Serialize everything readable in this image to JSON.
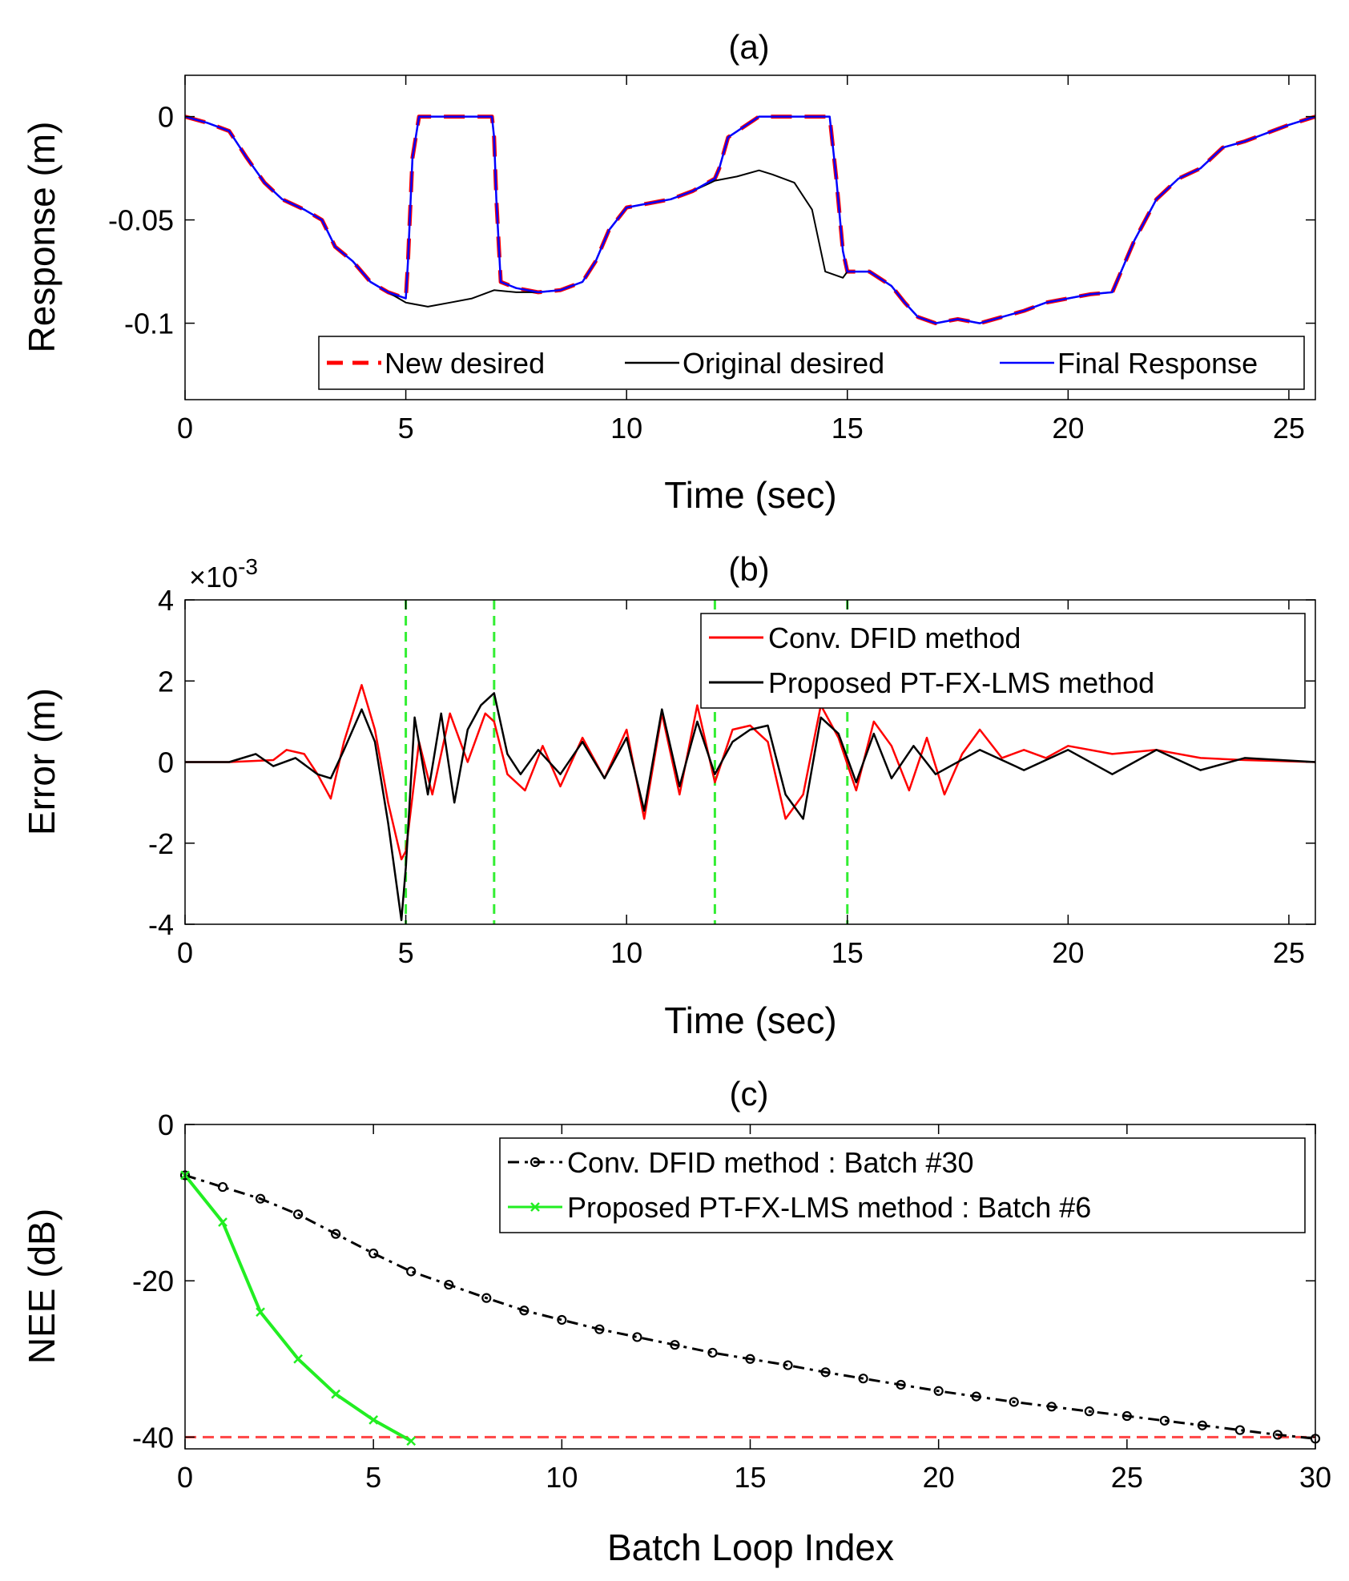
{
  "chart_data": [
    {
      "id": "a",
      "type": "line",
      "title": "(a)",
      "xlabel": "Time (sec)",
      "ylabel": "Response (m)",
      "xlim": [
        0,
        25.6
      ],
      "ylim": [
        -0.137,
        0.02
      ],
      "xticks": [
        0,
        5,
        10,
        15,
        20,
        25
      ],
      "yticks": [
        0,
        -0.05,
        -0.1
      ],
      "ytick_labels": [
        "0",
        "-0.05",
        "-0.1"
      ],
      "grid": false,
      "legend": {
        "placement": "bottom-right",
        "orientation": "horizontal"
      },
      "series": [
        {
          "name": "New desired",
          "color": "#ff0000",
          "style": "dashed",
          "x": [
            0,
            0.5,
            1,
            1.4,
            1.8,
            2.2,
            2.7,
            3.1,
            3.4,
            3.8,
            4.2,
            4.6,
            5.0,
            5.05,
            5.15,
            5.3,
            6.0,
            6.6,
            6.95,
            7.0,
            7.05,
            7.15,
            7.5,
            8.0,
            8.5,
            9.0,
            9.3,
            9.6,
            10.0,
            10.5,
            11.0,
            11.5,
            12.0,
            12.1,
            12.3,
            13.0,
            13.5,
            14.0,
            14.6,
            14.75,
            14.9,
            15.0,
            15.5,
            16.0,
            16.3,
            16.6,
            17.0,
            17.5,
            18.0,
            18.5,
            19.0,
            19.5,
            20.0,
            20.5,
            21.0,
            21.5,
            22.0,
            22.5,
            23.0,
            23.5,
            24.0,
            24.5,
            25.0,
            25.6
          ],
          "y": [
            0,
            -0.003,
            -0.007,
            -0.02,
            -0.032,
            -0.04,
            -0.045,
            -0.05,
            -0.063,
            -0.07,
            -0.08,
            -0.085,
            -0.088,
            -0.07,
            -0.02,
            0,
            0,
            0,
            0,
            -0.01,
            -0.04,
            -0.08,
            -0.083,
            -0.085,
            -0.084,
            -0.08,
            -0.07,
            -0.055,
            -0.044,
            -0.042,
            -0.04,
            -0.036,
            -0.03,
            -0.025,
            -0.01,
            0,
            0,
            0,
            0,
            -0.03,
            -0.065,
            -0.075,
            -0.075,
            -0.082,
            -0.09,
            -0.097,
            -0.1,
            -0.098,
            -0.1,
            -0.097,
            -0.094,
            -0.09,
            -0.088,
            -0.086,
            -0.085,
            -0.06,
            -0.04,
            -0.03,
            -0.025,
            -0.015,
            -0.012,
            -0.008,
            -0.004,
            0
          ]
        },
        {
          "name": "Original desired",
          "color": "#000000",
          "style": "solid",
          "x": [
            0,
            0.5,
            1,
            1.4,
            1.8,
            2.2,
            2.7,
            3.1,
            3.4,
            3.8,
            4.2,
            4.6,
            5.0,
            5.5,
            6.0,
            6.5,
            7.0,
            7.5,
            8.0,
            8.5,
            9.0,
            9.3,
            9.6,
            10.0,
            10.5,
            11.0,
            11.5,
            12.0,
            12.5,
            13.0,
            13.3,
            13.8,
            14.2,
            14.5,
            14.9,
            15.0,
            15.5,
            16.0,
            16.3,
            16.6,
            17.0,
            17.5,
            18.0,
            18.5,
            19.0,
            19.5,
            20.0,
            20.5,
            21.0,
            21.5,
            22.0,
            22.5,
            23.0,
            23.5,
            24.0,
            24.5,
            25.0,
            25.6
          ],
          "y": [
            0,
            -0.003,
            -0.007,
            -0.02,
            -0.032,
            -0.04,
            -0.045,
            -0.05,
            -0.063,
            -0.07,
            -0.08,
            -0.085,
            -0.09,
            -0.092,
            -0.09,
            -0.088,
            -0.084,
            -0.085,
            -0.085,
            -0.084,
            -0.08,
            -0.07,
            -0.055,
            -0.044,
            -0.042,
            -0.04,
            -0.036,
            -0.031,
            -0.029,
            -0.026,
            -0.028,
            -0.032,
            -0.045,
            -0.075,
            -0.078,
            -0.075,
            -0.075,
            -0.082,
            -0.09,
            -0.097,
            -0.1,
            -0.098,
            -0.1,
            -0.097,
            -0.094,
            -0.09,
            -0.088,
            -0.086,
            -0.085,
            -0.06,
            -0.04,
            -0.03,
            -0.025,
            -0.015,
            -0.012,
            -0.008,
            -0.004,
            0
          ]
        },
        {
          "name": "Final Response",
          "color": "#0000ff",
          "style": "solid",
          "x": [
            0,
            0.5,
            1,
            1.4,
            1.8,
            2.2,
            2.7,
            3.1,
            3.4,
            3.8,
            4.2,
            4.6,
            5.0,
            5.05,
            5.15,
            5.3,
            6.0,
            6.6,
            6.95,
            7.0,
            7.05,
            7.15,
            7.5,
            8.0,
            8.5,
            9.0,
            9.3,
            9.6,
            10.0,
            10.5,
            11.0,
            11.5,
            12.0,
            12.1,
            12.3,
            13.0,
            13.5,
            14.0,
            14.6,
            14.75,
            14.9,
            15.0,
            15.5,
            16.0,
            16.3,
            16.6,
            17.0,
            17.5,
            18.0,
            18.5,
            19.0,
            19.5,
            20.0,
            20.5,
            21.0,
            21.5,
            22.0,
            22.5,
            23.0,
            23.5,
            24.0,
            24.5,
            25.0,
            25.6
          ],
          "y": [
            0,
            -0.003,
            -0.007,
            -0.02,
            -0.032,
            -0.04,
            -0.045,
            -0.05,
            -0.063,
            -0.07,
            -0.08,
            -0.085,
            -0.088,
            -0.07,
            -0.02,
            0,
            0,
            0,
            0,
            -0.01,
            -0.04,
            -0.08,
            -0.083,
            -0.085,
            -0.084,
            -0.08,
            -0.07,
            -0.055,
            -0.044,
            -0.042,
            -0.04,
            -0.036,
            -0.03,
            -0.025,
            -0.01,
            0,
            0,
            0,
            0,
            -0.03,
            -0.065,
            -0.075,
            -0.075,
            -0.082,
            -0.09,
            -0.097,
            -0.1,
            -0.098,
            -0.1,
            -0.097,
            -0.094,
            -0.09,
            -0.088,
            -0.086,
            -0.085,
            -0.06,
            -0.04,
            -0.03,
            -0.025,
            -0.015,
            -0.012,
            -0.008,
            -0.004,
            0
          ]
        }
      ]
    },
    {
      "id": "b",
      "type": "line",
      "title": "(b)",
      "xlabel": "Time (sec)",
      "ylabel": "Error (m)",
      "y_multiplier": "×10",
      "y_exponent": "-3",
      "xlim": [
        0,
        25.6
      ],
      "ylim": [
        -4,
        4
      ],
      "xticks": [
        0,
        5,
        10,
        15,
        20,
        25
      ],
      "yticks": [
        4,
        2,
        0,
        -2,
        -4
      ],
      "grid": false,
      "vlines": {
        "x": [
          5,
          7,
          12,
          15
        ],
        "color": "#33ee33",
        "style": "dashed"
      },
      "legend": {
        "placement": "top-right",
        "orientation": "vertical"
      },
      "series": [
        {
          "name": "Conv. DFID method",
          "color": "#ff0000",
          "style": "solid",
          "x": [
            0,
            1,
            2,
            2.3,
            2.7,
            3.0,
            3.3,
            3.6,
            4.0,
            4.3,
            4.6,
            4.9,
            5.0,
            5.3,
            5.6,
            6.0,
            6.4,
            6.8,
            7.0,
            7.3,
            7.7,
            8.1,
            8.5,
            9.0,
            9.5,
            10.0,
            10.4,
            10.8,
            11.2,
            11.6,
            12.0,
            12.4,
            12.8,
            13.2,
            13.6,
            14.0,
            14.4,
            14.8,
            15.2,
            15.6,
            16.0,
            16.4,
            16.8,
            17.2,
            17.6,
            18.0,
            18.5,
            19.0,
            19.5,
            20.0,
            21.0,
            22.0,
            23.0,
            24.0,
            25.6
          ],
          "y": [
            0,
            0,
            0.05,
            0.3,
            0.2,
            -0.3,
            -0.9,
            0.5,
            1.9,
            0.8,
            -1.0,
            -2.4,
            -2.2,
            0.5,
            -0.8,
            1.2,
            0,
            1.2,
            1.0,
            -0.3,
            -0.7,
            0.4,
            -0.6,
            0.6,
            -0.4,
            0.8,
            -1.4,
            1.2,
            -0.8,
            1.4,
            -0.5,
            0.8,
            0.9,
            0.5,
            -1.4,
            -0.8,
            1.4,
            0.6,
            -0.7,
            1.0,
            0.4,
            -0.7,
            0.6,
            -0.8,
            0.2,
            0.8,
            0.1,
            0.3,
            0.1,
            0.4,
            0.2,
            0.3,
            0.1,
            0.05,
            0
          ]
        },
        {
          "name": "Proposed PT-FX-LMS method",
          "color": "#000000",
          "style": "solid",
          "x": [
            0,
            1,
            1.6,
            2.0,
            2.5,
            3.0,
            3.3,
            3.6,
            4.0,
            4.3,
            4.6,
            4.9,
            5.0,
            5.2,
            5.5,
            5.8,
            6.1,
            6.4,
            6.7,
            7.0,
            7.3,
            7.6,
            8.0,
            8.5,
            9.0,
            9.5,
            10.0,
            10.4,
            10.8,
            11.2,
            11.6,
            12.0,
            12.4,
            12.8,
            13.2,
            13.6,
            14.0,
            14.4,
            14.8,
            15.2,
            15.6,
            16.0,
            16.5,
            17.0,
            18.0,
            19.0,
            20.0,
            21.0,
            22.0,
            23.0,
            24.0,
            25.6
          ],
          "y": [
            0,
            0,
            0.2,
            -0.1,
            0.1,
            -0.3,
            -0.4,
            0.3,
            1.3,
            0.5,
            -1.5,
            -3.9,
            -2.6,
            1.1,
            -0.8,
            1.2,
            -1.0,
            0.8,
            1.4,
            1.7,
            0.2,
            -0.3,
            0.3,
            -0.3,
            0.5,
            -0.4,
            0.6,
            -1.2,
            1.3,
            -0.6,
            1.0,
            -0.3,
            0.5,
            0.8,
            0.9,
            -0.8,
            -1.4,
            1.1,
            0.7,
            -0.5,
            0.7,
            -0.4,
            0.4,
            -0.3,
            0.3,
            -0.2,
            0.3,
            -0.3,
            0.3,
            -0.2,
            0.1,
            0
          ]
        }
      ]
    },
    {
      "id": "c",
      "type": "line",
      "title": "(c)",
      "xlabel": "Batch Loop Index",
      "ylabel": "NEE (dB)",
      "xlim": [
        0,
        30
      ],
      "ylim": [
        -41.5,
        0
      ],
      "xticks": [
        0,
        5,
        10,
        15,
        20,
        25,
        30
      ],
      "yticks": [
        0,
        -20,
        -40
      ],
      "grid": false,
      "hline": {
        "y": -40,
        "color": "#ff4444",
        "style": "dashed"
      },
      "legend": {
        "placement": "top-right",
        "orientation": "vertical"
      },
      "series": [
        {
          "name": "Conv. DFID method : Batch #30",
          "color": "#000000",
          "style": "dashdot",
          "marker": "circle",
          "x": [
            0,
            1,
            2,
            3,
            4,
            5,
            6,
            7,
            8,
            9,
            10,
            11,
            12,
            13,
            14,
            15,
            16,
            17,
            18,
            19,
            20,
            21,
            22,
            23,
            24,
            25,
            26,
            27,
            28,
            29,
            30
          ],
          "y": [
            -6.5,
            -8.0,
            -9.5,
            -11.5,
            -14.0,
            -16.5,
            -18.8,
            -20.5,
            -22.2,
            -23.8,
            -25.0,
            -26.2,
            -27.2,
            -28.2,
            -29.2,
            -30.0,
            -30.8,
            -31.7,
            -32.5,
            -33.3,
            -34.1,
            -34.8,
            -35.5,
            -36.1,
            -36.7,
            -37.3,
            -37.9,
            -38.5,
            -39.1,
            -39.7,
            -40.2
          ]
        },
        {
          "name": "Proposed PT-FX-LMS method : Batch #6",
          "color": "#22ee22",
          "style": "solid",
          "marker": "x",
          "x": [
            0,
            1,
            2,
            3,
            4,
            5,
            6
          ],
          "y": [
            -6.5,
            -12.5,
            -24.0,
            -30.0,
            -34.5,
            -37.8,
            -40.5
          ]
        }
      ]
    }
  ]
}
